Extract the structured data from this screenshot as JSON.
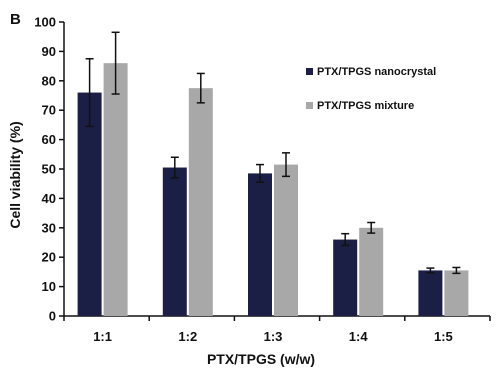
{
  "panel_label": "B",
  "chart_data": {
    "type": "bar",
    "categories": [
      "1:1",
      "1:2",
      "1:3",
      "1:4",
      "1:5"
    ],
    "series": [
      {
        "name": "PTX/TPGS nanocrystal",
        "values": [
          76,
          50.5,
          48.5,
          26,
          15.5
        ],
        "errors": [
          11.5,
          3.5,
          3,
          2,
          0.8
        ],
        "color": "#1b1f45"
      },
      {
        "name": "PTX/TPGS mixture",
        "values": [
          86,
          77.5,
          51.5,
          30,
          15.5
        ],
        "errors": [
          10.5,
          5,
          4,
          1.8,
          1
        ],
        "color": "#a8a8a8"
      }
    ],
    "xlabel": "PTX/TPGS (w/w)",
    "ylabel": "Cell viability (%)",
    "ylim": [
      0,
      100
    ],
    "yticks": [
      0,
      10,
      20,
      30,
      40,
      50,
      60,
      70,
      80,
      90,
      100
    ],
    "grid": false,
    "legend": "top-right"
  }
}
